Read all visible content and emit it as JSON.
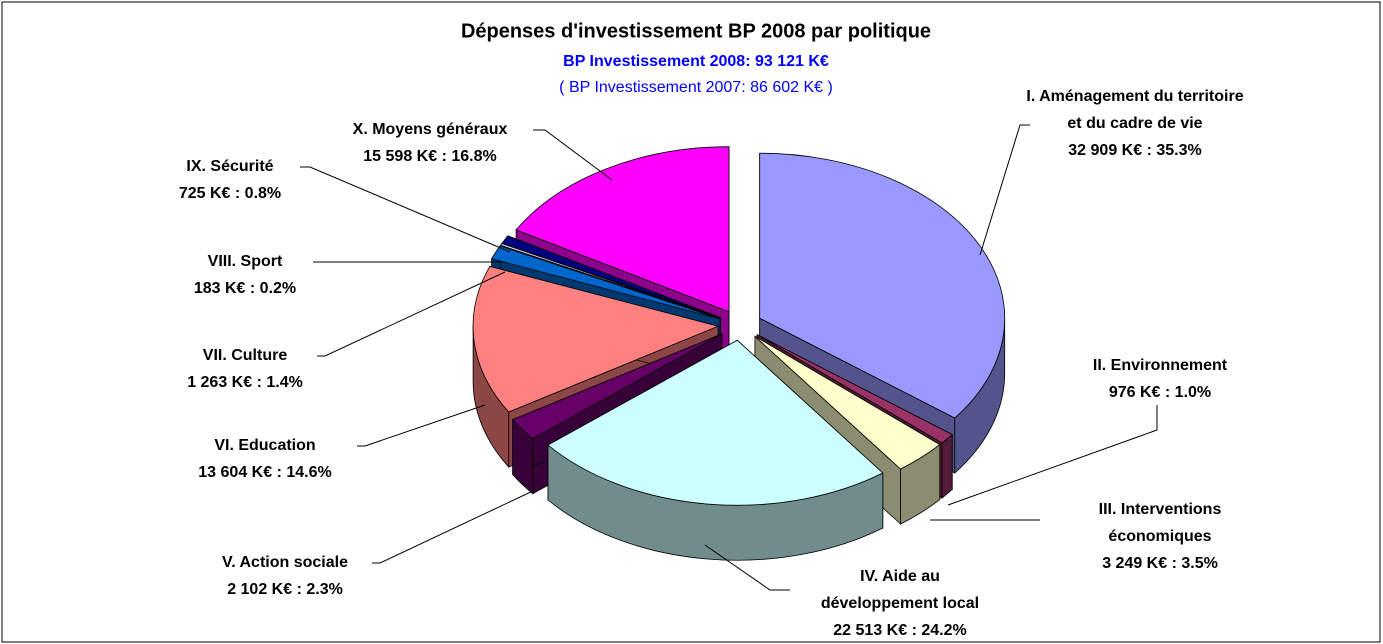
{
  "chart_data": {
    "type": "pie",
    "title": "Dépenses d'investissement BP 2008 par politique",
    "subtitle": "BP Investissement 2008: 93 121 K€",
    "subtitle2": "( BP Investissement 2007: 86 602 K€ )",
    "categories": [
      "I. Aménagement du territoire et du cadre de vie",
      "II. Environnement",
      "III. Interventions économiques",
      "IV. Aide au développement local",
      "V. Action sociale",
      "VI. Education",
      "VII. Culture",
      "VIII. Sport",
      "IX. Sécurité",
      "X. Moyens généraux"
    ],
    "values": [
      32909,
      976,
      3249,
      22513,
      2102,
      13604,
      1263,
      183,
      725,
      15598
    ],
    "value_labels": [
      "32 909 K€ : 35.3%",
      "976 K€ : 1.0%",
      "3 249 K€ : 3.5%",
      "22 513 K€ : 24.2%",
      "2 102 K€ : 2.3%",
      "13 604 K€ : 14.6%",
      "1 263 K€ : 1.4%",
      "183 K€ : 0.2%",
      "725 K€ : 0.8%",
      "15 598 K€ : 16.8%"
    ],
    "colors": [
      "#9999FF",
      "#993366",
      "#FFFFCC",
      "#CCFFFF",
      "#660066",
      "#FF8080",
      "#0066CC",
      "#CCCCFF",
      "#000080",
      "#FF00FF"
    ]
  }
}
